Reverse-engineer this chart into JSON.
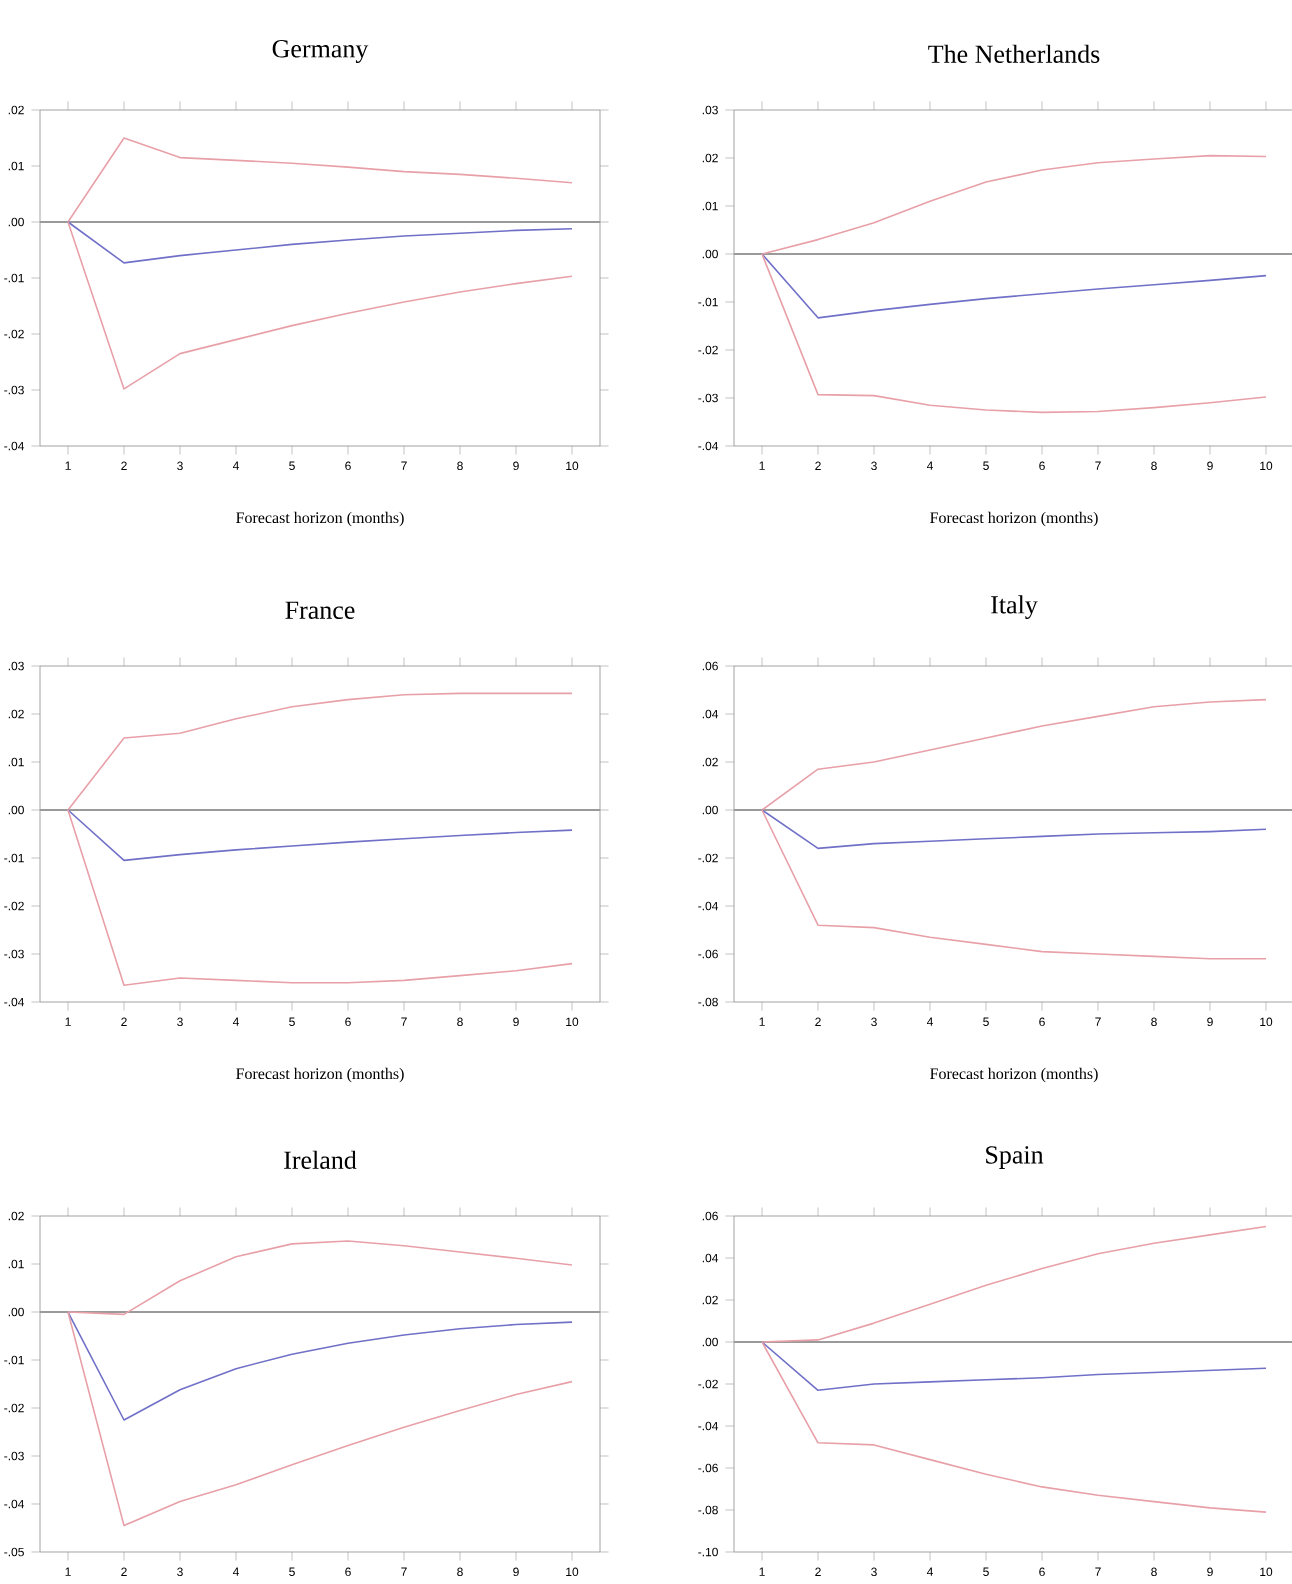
{
  "chart_data": [
    {
      "type": "line",
      "title": "Germany",
      "xlabel": "Forecast horizon (months)",
      "categories": [
        "1",
        "2",
        "3",
        "4",
        "5",
        "6",
        "7",
        "8",
        "9",
        "10"
      ],
      "ylim": [
        -0.04,
        0.02
      ],
      "yticks": [
        {
          "value": -0.04,
          "label": "-.04"
        },
        {
          "value": -0.03,
          "label": "-.03"
        },
        {
          "value": -0.02,
          "label": "-.02"
        },
        {
          "value": -0.01,
          "label": "-.01"
        },
        {
          "value": 0,
          "label": ".00"
        },
        {
          "value": 0.01,
          "label": ".01"
        },
        {
          "value": 0.02,
          "label": ".02"
        }
      ],
      "ref_lines": [
        {
          "axis": "y",
          "value": 0,
          "color": "#9a9a9a"
        }
      ],
      "series": [
        {
          "color": "#e8a0a8",
          "values": [
            0,
            0.015,
            0.0115,
            0.011,
            0.0105,
            0.0098,
            0.009,
            0.0085,
            0.0078,
            0.007
          ]
        },
        {
          "color": "#7070c8",
          "values": [
            0,
            -0.0073,
            -0.006,
            -0.005,
            -0.004,
            -0.0032,
            -0.0025,
            -0.002,
            -0.0015,
            -0.0012
          ]
        },
        {
          "color": "#e8a0a8",
          "values": [
            0,
            -0.0298,
            -0.0235,
            -0.021,
            -0.0185,
            -0.0163,
            -0.0143,
            -0.0125,
            -0.011,
            -0.0097
          ]
        }
      ]
    },
    {
      "type": "line",
      "title": "The Netherlands",
      "xlabel": "Forecast horizon (months)",
      "categories": [
        "1",
        "2",
        "3",
        "4",
        "5",
        "6",
        "7",
        "8",
        "9",
        "10"
      ],
      "ylim": [
        -0.04,
        0.03
      ],
      "yticks": [
        {
          "value": -0.04,
          "label": "-.04"
        },
        {
          "value": -0.03,
          "label": "-.03"
        },
        {
          "value": -0.02,
          "label": "-.02"
        },
        {
          "value": -0.01,
          "label": "-.01"
        },
        {
          "value": 0,
          "label": ".00"
        },
        {
          "value": 0.01,
          "label": ".01"
        },
        {
          "value": 0.02,
          "label": ".02"
        },
        {
          "value": 0.03,
          "label": ".03"
        }
      ],
      "ref_lines": [
        {
          "axis": "y",
          "value": 0,
          "color": "#9a9a9a"
        }
      ],
      "series": [
        {
          "color": "#e8a0a8",
          "values": [
            0,
            0.003,
            0.0065,
            0.011,
            0.015,
            0.0175,
            0.019,
            0.0198,
            0.0205,
            0.0203
          ]
        },
        {
          "color": "#7070c8",
          "values": [
            0,
            -0.0133,
            -0.0118,
            -0.0105,
            -0.0093,
            -0.0083,
            -0.0073,
            -0.0064,
            -0.0055,
            -0.0045
          ]
        },
        {
          "color": "#e8a0a8",
          "values": [
            0,
            -0.0293,
            -0.0295,
            -0.0315,
            -0.0325,
            -0.033,
            -0.0328,
            -0.032,
            -0.031,
            -0.0298
          ]
        }
      ]
    },
    {
      "type": "line",
      "title": "France",
      "xlabel": "Forecast horizon (months)",
      "categories": [
        "1",
        "2",
        "3",
        "4",
        "5",
        "6",
        "7",
        "8",
        "9",
        "10"
      ],
      "ylim": [
        -0.04,
        0.03
      ],
      "yticks": [
        {
          "value": -0.04,
          "label": "-.04"
        },
        {
          "value": -0.03,
          "label": "-.03"
        },
        {
          "value": -0.02,
          "label": "-.02"
        },
        {
          "value": -0.01,
          "label": "-.01"
        },
        {
          "value": 0,
          "label": ".00"
        },
        {
          "value": 0.01,
          "label": ".01"
        },
        {
          "value": 0.02,
          "label": ".02"
        },
        {
          "value": 0.03,
          "label": ".03"
        }
      ],
      "ref_lines": [
        {
          "axis": "y",
          "value": 0,
          "color": "#9a9a9a"
        }
      ],
      "series": [
        {
          "color": "#e8a0a8",
          "values": [
            0,
            0.015,
            0.016,
            0.019,
            0.0215,
            0.023,
            0.024,
            0.0243,
            0.0243,
            0.0243
          ]
        },
        {
          "color": "#7070c8",
          "values": [
            0,
            -0.0105,
            -0.0093,
            -0.0083,
            -0.0075,
            -0.0067,
            -0.006,
            -0.0053,
            -0.0047,
            -0.0042
          ]
        },
        {
          "color": "#e8a0a8",
          "values": [
            0,
            -0.0365,
            -0.035,
            -0.0355,
            -0.036,
            -0.036,
            -0.0355,
            -0.0345,
            -0.0335,
            -0.032
          ]
        }
      ]
    },
    {
      "type": "line",
      "title": "Italy",
      "xlabel": "Forecast horizon (months)",
      "categories": [
        "1",
        "2",
        "3",
        "4",
        "5",
        "6",
        "7",
        "8",
        "9",
        "10"
      ],
      "ylim": [
        -0.08,
        0.06
      ],
      "yticks": [
        {
          "value": -0.08,
          "label": "-.08"
        },
        {
          "value": -0.06,
          "label": "-.06"
        },
        {
          "value": -0.04,
          "label": "-.04"
        },
        {
          "value": -0.02,
          "label": "-.02"
        },
        {
          "value": 0,
          "label": ".00"
        },
        {
          "value": 0.02,
          "label": ".02"
        },
        {
          "value": 0.04,
          "label": ".04"
        },
        {
          "value": 0.06,
          "label": ".06"
        }
      ],
      "ref_lines": [
        {
          "axis": "y",
          "value": 0,
          "color": "#9a9a9a"
        }
      ],
      "series": [
        {
          "color": "#e8a0a8",
          "values": [
            0,
            0.017,
            0.02,
            0.025,
            0.03,
            0.035,
            0.039,
            0.043,
            0.045,
            0.046
          ]
        },
        {
          "color": "#7070c8",
          "values": [
            0,
            -0.016,
            -0.014,
            -0.013,
            -0.012,
            -0.011,
            -0.01,
            -0.0095,
            -0.009,
            -0.008
          ]
        },
        {
          "color": "#e8a0a8",
          "values": [
            0,
            -0.048,
            -0.049,
            -0.053,
            -0.056,
            -0.059,
            -0.06,
            -0.061,
            -0.062,
            -0.062
          ]
        }
      ]
    },
    {
      "type": "line",
      "title": "Ireland",
      "categories": [
        "1",
        "2",
        "3",
        "4",
        "5",
        "6",
        "7",
        "8",
        "9",
        "10"
      ],
      "ylim": [
        -0.05,
        0.02
      ],
      "yticks": [
        {
          "value": -0.05,
          "label": "-.05"
        },
        {
          "value": -0.04,
          "label": "-.04"
        },
        {
          "value": -0.03,
          "label": "-.03"
        },
        {
          "value": -0.02,
          "label": "-.02"
        },
        {
          "value": -0.01,
          "label": "-.01"
        },
        {
          "value": 0,
          "label": ".00"
        },
        {
          "value": 0.01,
          "label": ".01"
        },
        {
          "value": 0.02,
          "label": ".02"
        }
      ],
      "ref_lines": [
        {
          "axis": "y",
          "value": 0,
          "color": "#9a9a9a"
        }
      ],
      "series": [
        {
          "color": "#e8a0a8",
          "values": [
            0,
            -0.0005,
            0.0065,
            0.0115,
            0.0142,
            0.0148,
            0.0138,
            0.0125,
            0.0112,
            0.0098
          ]
        },
        {
          "color": "#7070c8",
          "values": [
            0,
            -0.0225,
            -0.0162,
            -0.0118,
            -0.0088,
            -0.0065,
            -0.0048,
            -0.0035,
            -0.0026,
            -0.0021
          ]
        },
        {
          "color": "#e8a0a8",
          "values": [
            0,
            -0.0445,
            -0.0395,
            -0.036,
            -0.0318,
            -0.0278,
            -0.024,
            -0.0205,
            -0.0172,
            -0.0145
          ]
        }
      ]
    },
    {
      "type": "line",
      "title": "Spain",
      "categories": [
        "1",
        "2",
        "3",
        "4",
        "5",
        "6",
        "7",
        "8",
        "9",
        "10"
      ],
      "ylim": [
        -0.1,
        0.06
      ],
      "yticks": [
        {
          "value": -0.1,
          "label": "-.10"
        },
        {
          "value": -0.08,
          "label": "-.08"
        },
        {
          "value": -0.06,
          "label": "-.06"
        },
        {
          "value": -0.04,
          "label": "-.04"
        },
        {
          "value": -0.02,
          "label": "-.02"
        },
        {
          "value": 0,
          "label": ".00"
        },
        {
          "value": 0.02,
          "label": ".02"
        },
        {
          "value": 0.04,
          "label": ".04"
        },
        {
          "value": 0.06,
          "label": ".06"
        }
      ],
      "ref_lines": [
        {
          "axis": "y",
          "value": 0,
          "color": "#9a9a9a"
        }
      ],
      "series": [
        {
          "color": "#e8a0a8",
          "values": [
            0,
            0.001,
            0.009,
            0.018,
            0.027,
            0.035,
            0.042,
            0.047,
            0.051,
            0.055
          ]
        },
        {
          "color": "#7070c8",
          "values": [
            0,
            -0.023,
            -0.02,
            -0.019,
            -0.018,
            -0.017,
            -0.0155,
            -0.0145,
            -0.0135,
            -0.0125
          ]
        },
        {
          "color": "#e8a0a8",
          "values": [
            0,
            -0.048,
            -0.049,
            -0.056,
            -0.063,
            -0.069,
            -0.073,
            -0.076,
            -0.079,
            -0.081
          ]
        }
      ]
    }
  ]
}
